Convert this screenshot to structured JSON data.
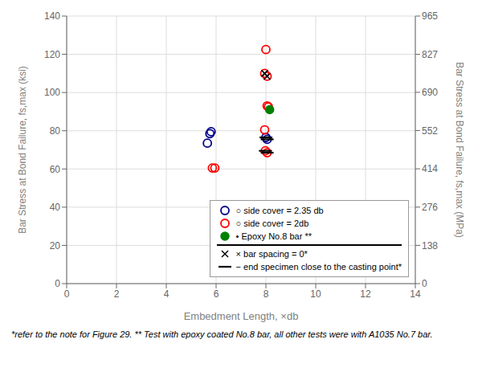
{
  "chart_data": {
    "type": "scatter",
    "xlabel": "Embedment Length, ×db",
    "ylabel": "Bar Stress at Bond Failure, fs,max (ksi)",
    "y2label": "Bar Stress at Bond Failure, fs,max (MPa)",
    "xlim": [
      0,
      14
    ],
    "ylim": [
      0,
      140
    ],
    "y2lim": [
      0,
      965
    ],
    "xticks": [
      0,
      2,
      4,
      6,
      8,
      10,
      12,
      14
    ],
    "yticks": [
      0,
      20,
      40,
      60,
      80,
      100,
      120,
      140
    ],
    "y2ticks": [
      0,
      138,
      276,
      414,
      552,
      690,
      827,
      965
    ],
    "grid": true,
    "legend": "lower right",
    "footnote": "*refer to the note for Figure 29. ** Test with epoxy coated No.8 bar, all other tests were with A1035 No.7 bar.",
    "series": [
      {
        "name": "○ side cover = 2.35 db",
        "color": "#00008B",
        "marker": "open_circle",
        "x": [
          5.65,
          5.75,
          5.8,
          8.0,
          8.05
        ],
        "values": [
          73.5,
          78.5,
          79.5,
          76.5,
          75.5
        ]
      },
      {
        "name": "○ side cover = 2db",
        "color": "#FF0000",
        "marker": "open_circle",
        "x": [
          5.85,
          5.95,
          8.0,
          7.95,
          8.05,
          8.1,
          7.95,
          8.05,
          7.98,
          8.05
        ],
        "values": [
          60.5,
          60.5,
          122.5,
          80.5,
          93.0,
          92.5,
          110.0,
          108.5,
          69.5,
          68.5
        ]
      },
      {
        "name": "• Epoxy No.8 bar **",
        "color": "#008000",
        "marker": "filled_circle",
        "x": [
          8.15
        ],
        "values": [
          91.0
        ]
      },
      {
        "name": "× bar spacing = 0*",
        "color": "#000000",
        "marker": "x",
        "x": [
          7.95,
          8.05
        ],
        "values": [
          110.0,
          108.5
        ]
      },
      {
        "name": "− end specimen close to the casting point*",
        "color": "#000000",
        "marker": "dash",
        "x": [
          8.0,
          8.05,
          7.98,
          8.05
        ],
        "values": [
          76.5,
          75.5,
          69.5,
          68.5
        ]
      }
    ]
  }
}
